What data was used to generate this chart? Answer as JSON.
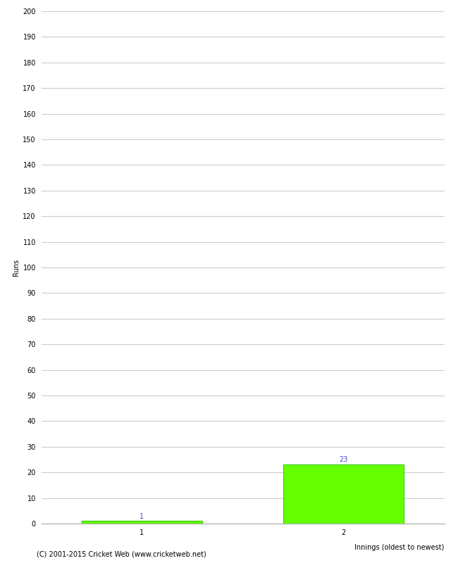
{
  "categories": [
    "1",
    "2"
  ],
  "values": [
    1,
    23
  ],
  "bar_color": "#66ff00",
  "bar_edge_color": "#33cc00",
  "xlabel": "Innings (oldest to newest)",
  "ylabel": "Runs",
  "ylim": [
    0,
    200
  ],
  "yticks": [
    0,
    10,
    20,
    30,
    40,
    50,
    60,
    70,
    80,
    90,
    100,
    110,
    120,
    130,
    140,
    150,
    160,
    170,
    180,
    190,
    200
  ],
  "background_color": "#ffffff",
  "grid_color": "#cccccc",
  "footer_text": "(C) 2001-2015 Cricket Web (www.cricketweb.net)",
  "annotation_color": "#4444cc",
  "annotation_fontsize": 7,
  "ylabel_fontsize": 7,
  "xlabel_fontsize": 7,
  "tick_fontsize": 7,
  "footer_fontsize": 7,
  "bar_positions": [
    1,
    3
  ],
  "bar_width": 1.2,
  "xlim": [
    0,
    4
  ]
}
